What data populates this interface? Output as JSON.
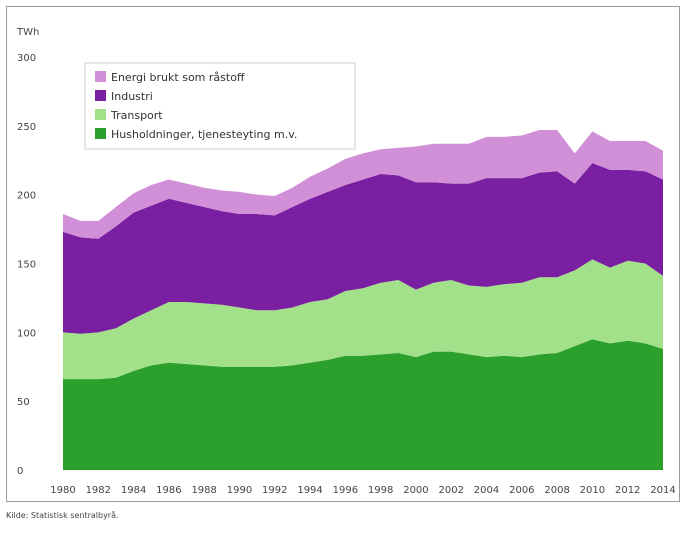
{
  "chart_data": {
    "type": "area",
    "stacked": true,
    "unit_label": "TWh",
    "x": [
      1980,
      1981,
      1982,
      1983,
      1984,
      1985,
      1986,
      1987,
      1988,
      1989,
      1990,
      1991,
      1992,
      1993,
      1994,
      1995,
      1996,
      1997,
      1998,
      1999,
      2000,
      2001,
      2002,
      2003,
      2004,
      2005,
      2006,
      2007,
      2008,
      2009,
      2010,
      2011,
      2012,
      2013,
      2014
    ],
    "xticks": [
      "1980",
      "1982",
      "1984",
      "1986",
      "1988",
      "1990",
      "1992",
      "1994",
      "1996",
      "1998",
      "2000",
      "2002",
      "2004",
      "2006",
      "2008",
      "2010",
      "2012",
      "2014"
    ],
    "ylim": [
      0,
      300
    ],
    "yticks": [
      0,
      50,
      100,
      150,
      200,
      250,
      300
    ],
    "series": [
      {
        "name": "Husholdninger, tjenesteyting m.v.",
        "color": "#2ca02c",
        "values": [
          66,
          66,
          66,
          67,
          72,
          76,
          78,
          77,
          76,
          75,
          75,
          75,
          75,
          76,
          78,
          80,
          83,
          83,
          84,
          85,
          82,
          86,
          86,
          84,
          82,
          83,
          82,
          84,
          85,
          90,
          95,
          92,
          94,
          92,
          88
        ]
      },
      {
        "name": "Transport",
        "color": "#a3e08a",
        "values": [
          34,
          33,
          34,
          36,
          38,
          40,
          44,
          45,
          45,
          45,
          43,
          41,
          41,
          42,
          44,
          44,
          47,
          49,
          52,
          53,
          49,
          50,
          52,
          50,
          51,
          52,
          54,
          56,
          55,
          55,
          58,
          55,
          58,
          58,
          53
        ]
      },
      {
        "name": "Industri",
        "color": "#7b1fa2",
        "values": [
          73,
          70,
          68,
          74,
          77,
          76,
          75,
          72,
          70,
          68,
          68,
          70,
          69,
          73,
          75,
          78,
          77,
          79,
          79,
          76,
          78,
          73,
          70,
          74,
          79,
          77,
          76,
          76,
          77,
          63,
          70,
          71,
          66,
          67,
          70
        ]
      },
      {
        "name": "Energi brukt som råstoff",
        "color": "#d18fd8",
        "values": [
          13,
          12,
          13,
          14,
          14,
          15,
          14,
          14,
          14,
          15,
          16,
          14,
          14,
          14,
          16,
          17,
          19,
          19,
          18,
          20,
          26,
          28,
          29,
          29,
          30,
          30,
          31,
          31,
          30,
          22,
          23,
          21,
          21,
          22,
          21
        ]
      }
    ]
  },
  "source": "Kilde: Statistisk sentralbyrå."
}
